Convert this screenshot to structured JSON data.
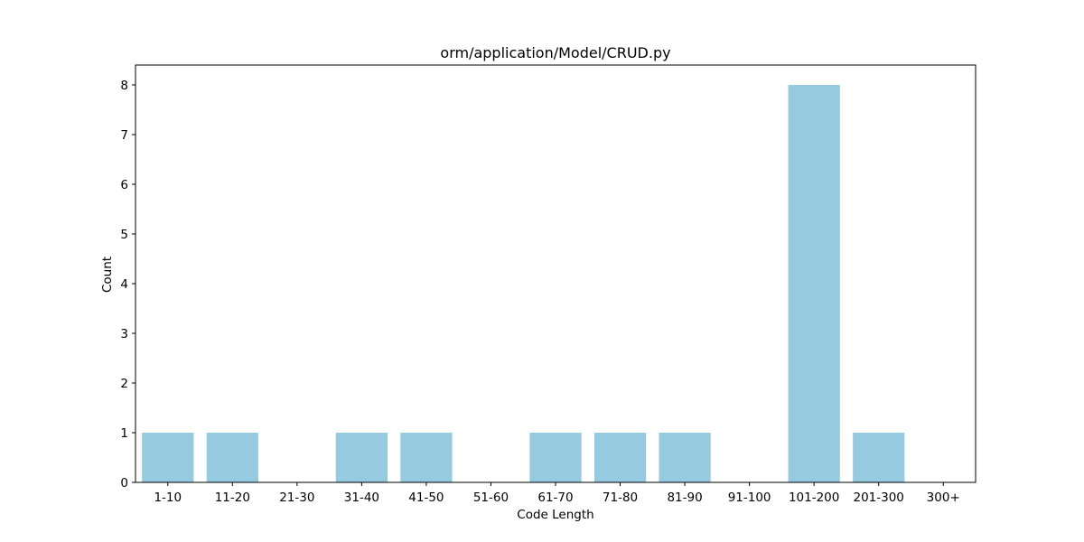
{
  "chart_data": {
    "type": "bar",
    "title": "orm/application/Model/CRUD.py",
    "xlabel": "Code Length",
    "ylabel": "Count",
    "categories": [
      "1-10",
      "11-20",
      "21-30",
      "31-40",
      "41-50",
      "51-60",
      "61-70",
      "71-80",
      "81-90",
      "91-100",
      "101-200",
      "201-300",
      "300+"
    ],
    "values": [
      1,
      1,
      0,
      1,
      1,
      0,
      1,
      1,
      1,
      0,
      8,
      1,
      0
    ],
    "ylim": [
      0,
      8.4
    ],
    "yticks": [
      0,
      1,
      2,
      3,
      4,
      5,
      6,
      7,
      8
    ],
    "bar_color": "#96CAE0",
    "grid": false,
    "legend": "none"
  }
}
